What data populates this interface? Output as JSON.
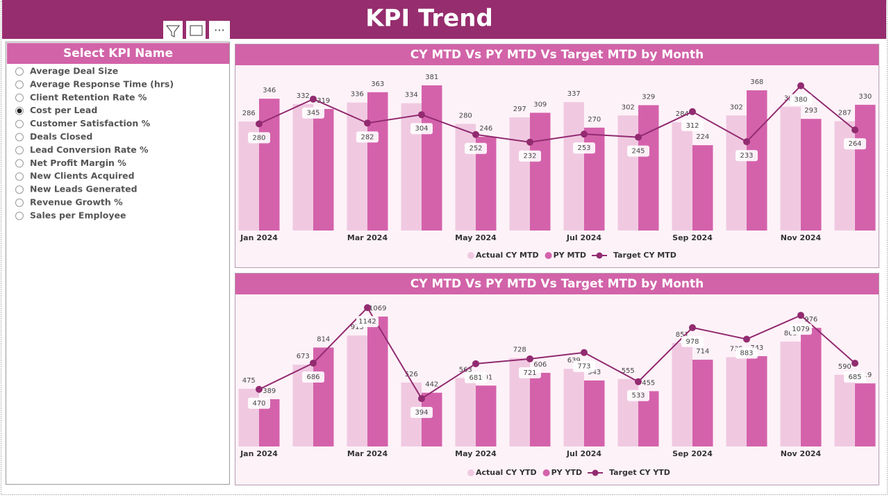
{
  "header": {
    "title": "KPI Trend"
  },
  "slicer": {
    "title": "Select KPI Name",
    "selected": 3,
    "items": [
      "Average Deal Size",
      "Average Response Time (hrs)",
      "Client Retention Rate %",
      "Cost per Lead",
      "Customer Satisfaction %",
      "Deals Closed",
      "Lead Conversion Rate %",
      "Net Profit Margin %",
      "New Clients Acquired",
      "New Leads Generated",
      "Revenue Growth %",
      "Sales per Employee"
    ]
  },
  "chart_data": [
    {
      "type": "bar-line",
      "title": "CY MTD Vs PY MTD Vs Target MTD by Month",
      "categories": [
        "Jan 2024",
        null,
        "Mar 2024",
        null,
        "May 2024",
        null,
        "Jul 2024",
        null,
        "Sep 2024",
        null,
        "Nov 2024",
        null
      ],
      "ylim": [
        0,
        390
      ],
      "series": [
        {
          "name": "Actual CY MTD",
          "kind": "bar",
          "color": "#f0c9e1",
          "values": [
            286,
            332,
            336,
            334,
            280,
            297,
            337,
            302,
            284,
            302,
            325,
            287
          ]
        },
        {
          "name": "PY MTD",
          "kind": "bar",
          "color": "#d462ab",
          "values": [
            346,
            319,
            363,
            381,
            246,
            309,
            270,
            329,
            224,
            368,
            293,
            330
          ]
        },
        {
          "name": "Target CY MTD",
          "kind": "line",
          "color": "#922b70",
          "values": [
            280,
            345,
            282,
            304,
            252,
            232,
            253,
            245,
            312,
            233,
            380,
            264
          ]
        }
      ]
    },
    {
      "type": "bar-line",
      "title": "CY MTD Vs PY MTD Vs Target MTD by Month",
      "categories": [
        "Jan 2024",
        null,
        "Mar 2024",
        null,
        "May 2024",
        null,
        "Jul 2024",
        null,
        "Sep 2024",
        null,
        "Nov 2024",
        null
      ],
      "ylim": [
        0,
        1200
      ],
      "series": [
        {
          "name": "Actual CY YTD",
          "kind": "bar",
          "color": "#f0c9e1",
          "values": [
            475,
            673,
            913,
            526,
            563,
            728,
            639,
            555,
            851,
            735,
            863,
            590
          ]
        },
        {
          "name": "PY YTD",
          "kind": "bar",
          "color": "#d462ab",
          "values": [
            389,
            814,
            1069,
            442,
            501,
            606,
            543,
            455,
            714,
            743,
            976,
            519
          ]
        },
        {
          "name": "Target CY YTD",
          "kind": "line",
          "color": "#922b70",
          "values": [
            470,
            686,
            1142,
            394,
            681,
            721,
            773,
            533,
            978,
            883,
            1079,
            685
          ]
        }
      ]
    }
  ]
}
